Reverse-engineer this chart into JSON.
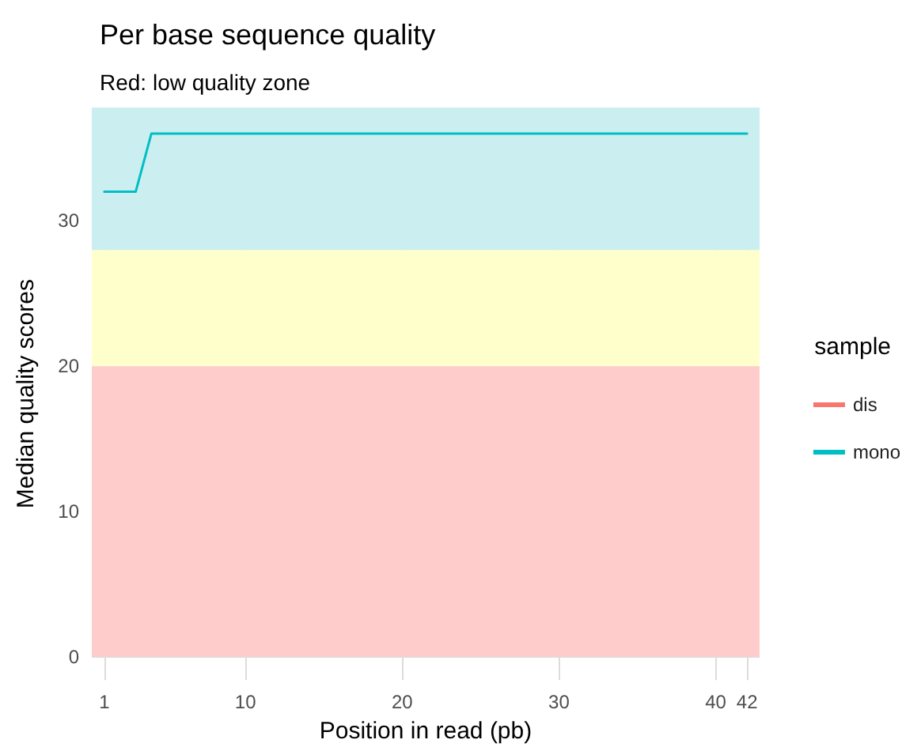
{
  "chart_data": {
    "type": "line",
    "title": "Per base sequence quality",
    "subtitle": "Red: low quality zone",
    "xlabel": "Position in read (pb)",
    "ylabel": "Median quality scores",
    "legend_title": "sample",
    "x": [
      1,
      3,
      4,
      42
    ],
    "series": [
      {
        "name": "dis",
        "color": "#f8766d",
        "values": [
          null,
          null,
          null,
          null
        ]
      },
      {
        "name": "mono",
        "color": "#00bfc4",
        "values": [
          32,
          32,
          36,
          36
        ]
      }
    ],
    "xlim": [
      0.2,
      42.8
    ],
    "xticks": [
      1,
      10,
      20,
      30,
      40,
      42
    ],
    "ylim": [
      -1.6,
      37.8
    ],
    "yticks": [
      0,
      10,
      20,
      30
    ],
    "bands": [
      {
        "axis": "y",
        "from": 0,
        "to": 20,
        "color": "#ffcccc"
      },
      {
        "axis": "y",
        "from": 20,
        "to": 28,
        "color": "#ffffcc"
      },
      {
        "axis": "y",
        "from": 28,
        "to": 37.8,
        "color": "#cbeef0"
      }
    ],
    "grid": true,
    "legend": "right",
    "line_style": "solid",
    "marker": "none"
  }
}
